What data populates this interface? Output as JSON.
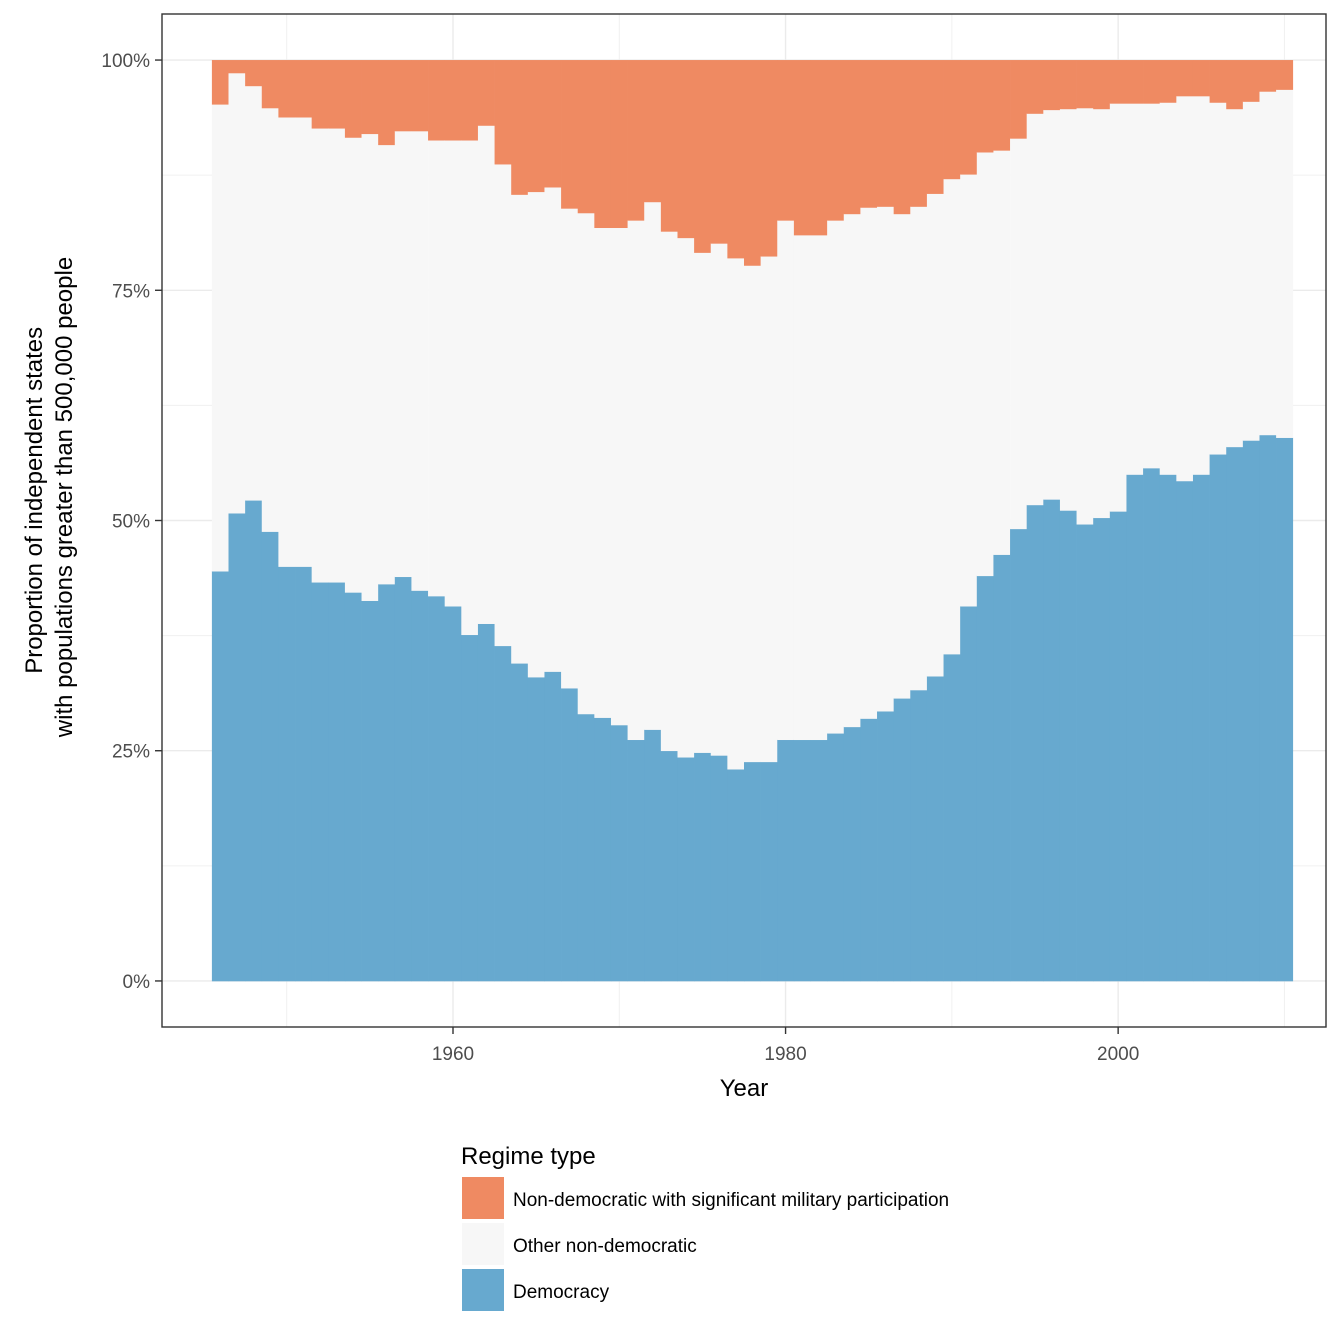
{
  "chart_data": {
    "type": "bar",
    "stacked": true,
    "stack_mode": "proportion",
    "xlabel": "Year",
    "ylabel_lines": [
      "Proportion of independent states",
      "with populations greater than 500,000 people"
    ],
    "xlim": [
      1942.5,
      2012.5
    ],
    "ylim": [
      -0.05,
      1.05
    ],
    "x_ticks": [
      {
        "value": 1960,
        "label": "1960"
      },
      {
        "value": 1980,
        "label": "1980"
      },
      {
        "value": 2000,
        "label": "2000"
      }
    ],
    "y_ticks": [
      {
        "value": 0,
        "label": "0%"
      },
      {
        "value": 0.25,
        "label": "25%"
      },
      {
        "value": 0.5,
        "label": "50%"
      },
      {
        "value": 0.75,
        "label": "75%"
      },
      {
        "value": 1,
        "label": "100%"
      }
    ],
    "grid": true,
    "legend": {
      "title": "Regime type",
      "position": "bottom",
      "items": [
        {
          "label": "Non-democratic with significant military participation",
          "color": "#ef8a62"
        },
        {
          "label": "Other non-democratic",
          "color": "#f7f7f7"
        },
        {
          "label": "Democracy",
          "color": "#67a9cf"
        }
      ]
    },
    "x": [
      1946,
      1947,
      1948,
      1949,
      1950,
      1951,
      1952,
      1953,
      1954,
      1955,
      1956,
      1957,
      1958,
      1959,
      1960,
      1961,
      1962,
      1963,
      1964,
      1965,
      1966,
      1967,
      1968,
      1969,
      1970,
      1971,
      1972,
      1973,
      1974,
      1975,
      1976,
      1977,
      1978,
      1979,
      1980,
      1981,
      1982,
      1983,
      1984,
      1985,
      1986,
      1987,
      1988,
      1989,
      1990,
      1991,
      1992,
      1993,
      1994,
      1995,
      1996,
      1997,
      1998,
      1999,
      2000,
      2001,
      2002,
      2003,
      2004,
      2005,
      2006,
      2007,
      2008,
      2009,
      2010
    ],
    "series": [
      {
        "name": "Democracy",
        "color": "#67a9cf",
        "values": [
          0.445,
          0.508,
          0.522,
          0.488,
          0.45,
          0.45,
          0.433,
          0.433,
          0.422,
          0.413,
          0.431,
          0.439,
          0.424,
          0.418,
          0.407,
          0.376,
          0.388,
          0.364,
          0.345,
          0.33,
          0.336,
          0.318,
          0.29,
          0.286,
          0.278,
          0.262,
          0.273,
          0.25,
          0.243,
          0.248,
          0.245,
          0.23,
          0.238,
          0.238,
          0.262,
          0.262,
          0.262,
          0.269,
          0.276,
          0.285,
          0.293,
          0.307,
          0.316,
          0.331,
          0.355,
          0.407,
          0.44,
          0.463,
          0.491,
          0.517,
          0.523,
          0.511,
          0.496,
          0.503,
          0.51,
          0.55,
          0.557,
          0.55,
          0.543,
          0.55,
          0.572,
          0.58,
          0.587,
          0.593,
          0.59
        ]
      },
      {
        "name": "Other non-democratic",
        "color": "#f7f7f7",
        "values": [
          0.507,
          0.478,
          0.45,
          0.46,
          0.488,
          0.488,
          0.493,
          0.493,
          0.494,
          0.507,
          0.477,
          0.484,
          0.499,
          0.495,
          0.506,
          0.537,
          0.541,
          0.523,
          0.509,
          0.527,
          0.526,
          0.521,
          0.544,
          0.532,
          0.54,
          0.564,
          0.573,
          0.564,
          0.564,
          0.543,
          0.556,
          0.555,
          0.539,
          0.549,
          0.564,
          0.548,
          0.548,
          0.557,
          0.557,
          0.555,
          0.548,
          0.526,
          0.525,
          0.524,
          0.516,
          0.469,
          0.46,
          0.439,
          0.424,
          0.425,
          0.423,
          0.436,
          0.452,
          0.444,
          0.443,
          0.403,
          0.396,
          0.404,
          0.418,
          0.411,
          0.382,
          0.367,
          0.368,
          0.373,
          0.378
        ]
      },
      {
        "name": "Non-democratic with significant military participation",
        "color": "#ef8a62",
        "values": [
          0.048,
          0.014,
          0.028,
          0.052,
          0.062,
          0.062,
          0.074,
          0.074,
          0.084,
          0.08,
          0.092,
          0.077,
          0.077,
          0.087,
          0.087,
          0.087,
          0.071,
          0.113,
          0.146,
          0.143,
          0.138,
          0.161,
          0.166,
          0.182,
          0.182,
          0.174,
          0.154,
          0.186,
          0.193,
          0.209,
          0.199,
          0.215,
          0.223,
          0.213,
          0.174,
          0.19,
          0.19,
          0.174,
          0.167,
          0.16,
          0.159,
          0.167,
          0.159,
          0.145,
          0.129,
          0.124,
          0.1,
          0.098,
          0.085,
          0.058,
          0.054,
          0.053,
          0.052,
          0.053,
          0.047,
          0.047,
          0.047,
          0.046,
          0.039,
          0.039,
          0.046,
          0.053,
          0.045,
          0.034,
          0.032
        ]
      }
    ]
  }
}
